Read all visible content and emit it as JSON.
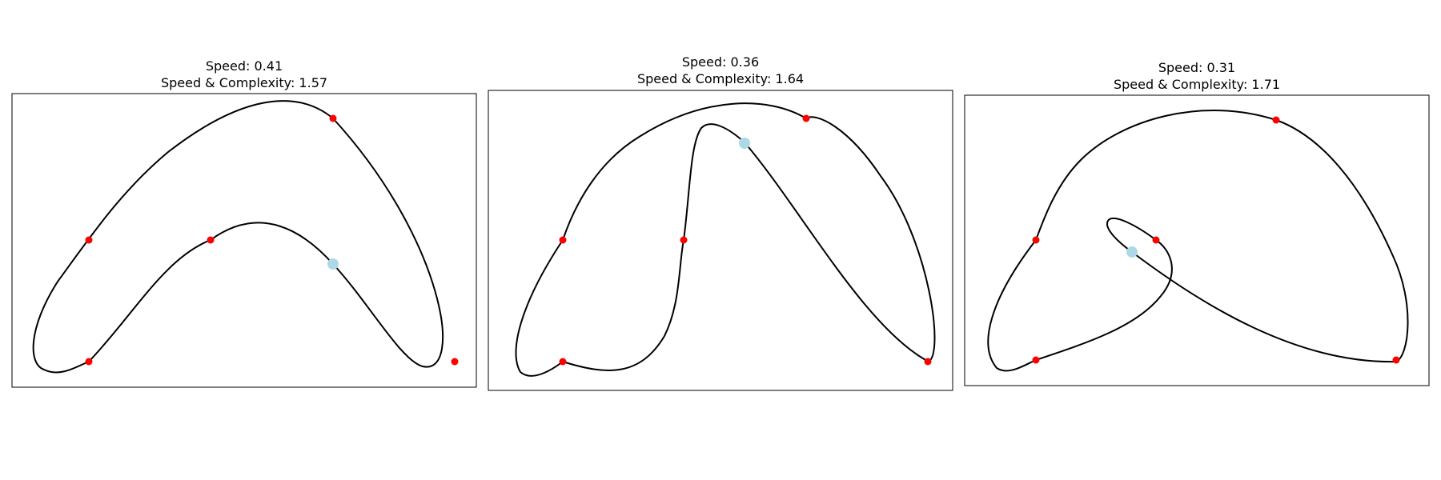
{
  "panels": [
    {
      "title_line1": "Speed: 0.41",
      "title_line2": "Speed & Complexity: 1.57"
    },
    {
      "title_line1": "Speed: 0.36",
      "title_line2": "Speed & Complexity: 1.64"
    },
    {
      "title_line1": "Speed: 0.31",
      "title_line2": "Speed & Complexity: 1.71"
    }
  ],
  "colors": {
    "curve": "#000000",
    "control_point": "#ff0000",
    "marker": "#add8e6",
    "frame": "#000000"
  }
}
